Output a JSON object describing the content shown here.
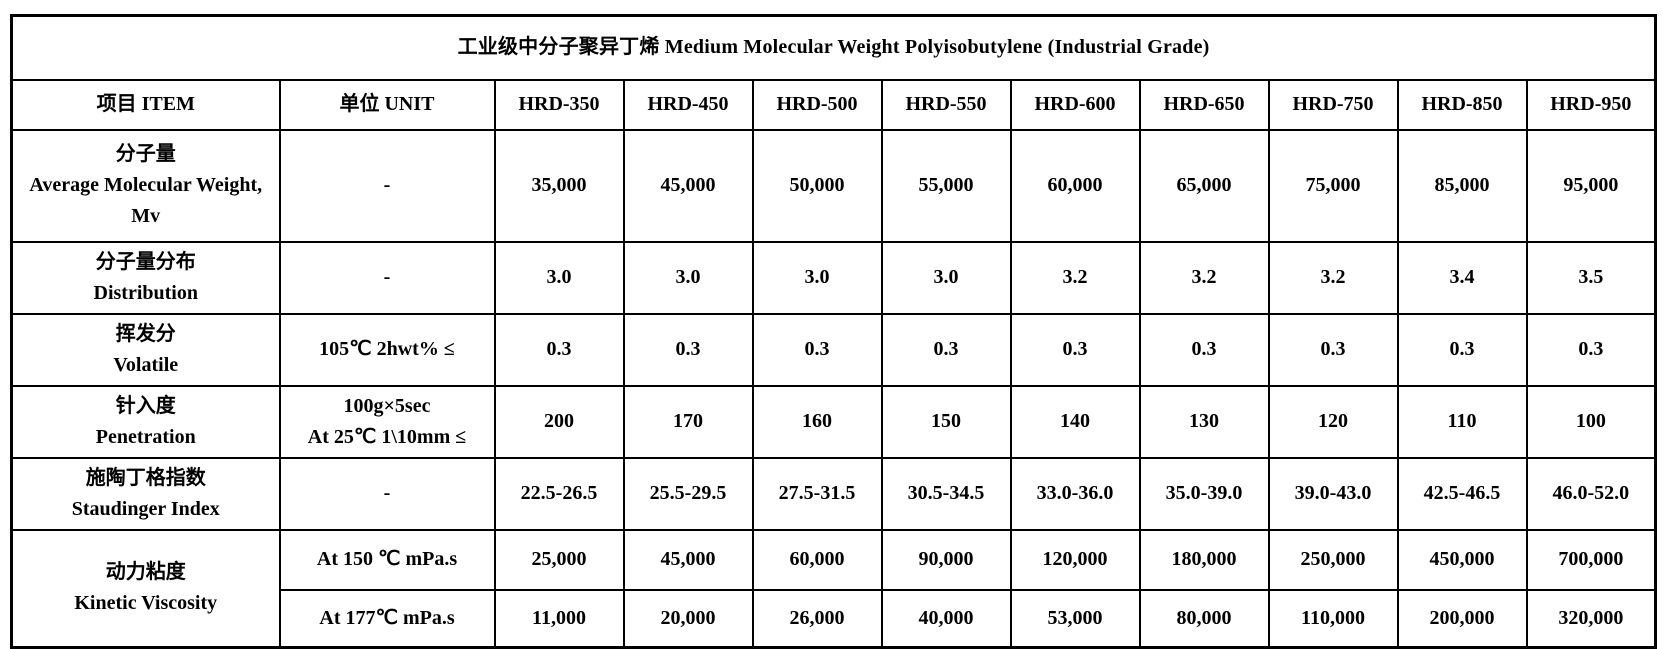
{
  "colors": {
    "border": "#000000",
    "background": "#ffffff",
    "text": "#000000"
  },
  "table": {
    "title": "工业级中分子聚异丁烯  Medium Molecular Weight Polyisobutylene (Industrial Grade)",
    "columns": [
      "项目 ITEM",
      "单位  UNIT",
      "HRD-350",
      "HRD-450",
      "HRD-500",
      "HRD-550",
      "HRD-600",
      "HRD-650",
      "HRD-750",
      "HRD-850",
      "HRD-950"
    ],
    "rows": [
      {
        "item_lines": [
          "分子量",
          "Average Molecular Weight,",
          "Mv"
        ],
        "unit_lines": [
          "-"
        ],
        "values": [
          "35,000",
          "45,000",
          "50,000",
          "55,000",
          "60,000",
          "65,000",
          "75,000",
          "85,000",
          "95,000"
        ]
      },
      {
        "item_lines": [
          "分子量分布",
          "Distribution"
        ],
        "unit_lines": [
          "-"
        ],
        "values": [
          "3.0",
          "3.0",
          "3.0",
          "3.0",
          "3.2",
          "3.2",
          "3.2",
          "3.4",
          "3.5"
        ]
      },
      {
        "item_lines": [
          "挥发分",
          "Volatile"
        ],
        "unit_lines": [
          "105℃ 2hwt%  ≤"
        ],
        "values": [
          "0.3",
          "0.3",
          "0.3",
          "0.3",
          "0.3",
          "0.3",
          "0.3",
          "0.3",
          "0.3"
        ]
      },
      {
        "item_lines": [
          "针入度",
          "Penetration"
        ],
        "unit_lines": [
          "100g×5sec",
          "At 25℃  1\\10mm ≤"
        ],
        "values": [
          "200",
          "170",
          "160",
          "150",
          "140",
          "130",
          "120",
          "110",
          "100"
        ]
      },
      {
        "item_lines": [
          "施陶丁格指数",
          "Staudinger Index"
        ],
        "unit_lines": [
          "-"
        ],
        "values": [
          "22.5-26.5",
          "25.5-29.5",
          "27.5-31.5",
          "30.5-34.5",
          "33.0-36.0",
          "35.0-39.0",
          "39.0-43.0",
          "42.5-46.5",
          "46.0-52.0"
        ]
      },
      {
        "item_lines": [
          "动力粘度",
          "Kinetic Viscosity"
        ],
        "item_rowspan": 2,
        "unit_lines": [
          "At 150 ℃ mPa.s"
        ],
        "values": [
          "25,000",
          "45,000",
          "60,000",
          "90,000",
          "120,000",
          "180,000",
          "250,000",
          "450,000",
          "700,000"
        ]
      },
      {
        "item_lines": [],
        "unit_lines": [
          "At 177℃  mPa.s"
        ],
        "values": [
          "11,000",
          "20,000",
          "26,000",
          "40,000",
          "53,000",
          "80,000",
          "110,000",
          "200,000",
          "320,000"
        ]
      }
    ]
  }
}
